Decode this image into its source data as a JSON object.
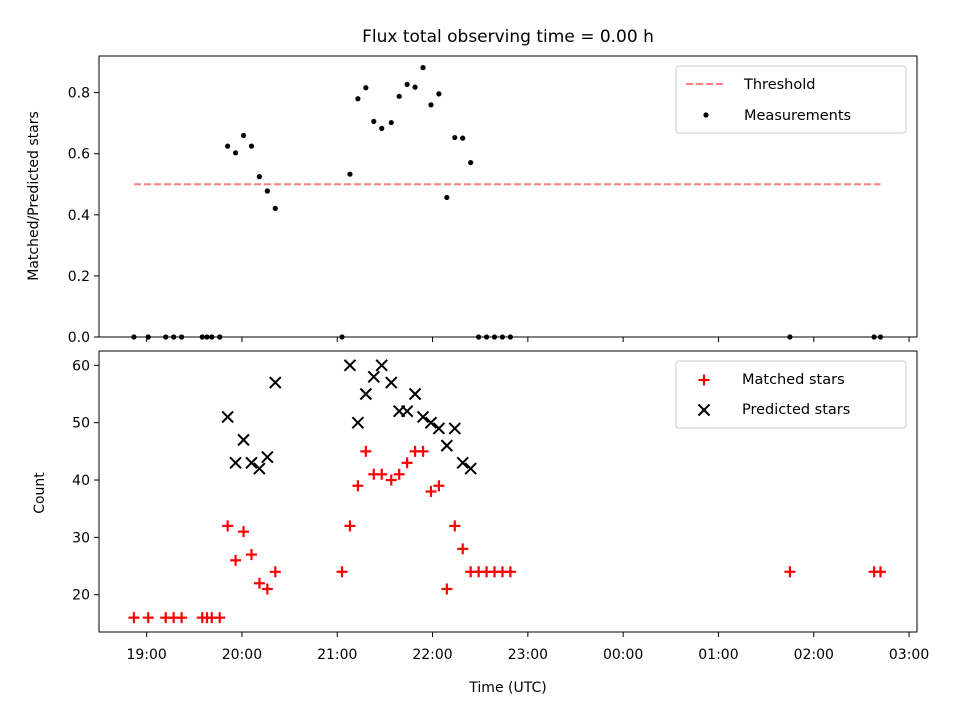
{
  "chart_data": [
    {
      "type": "scatter",
      "title": "Flux total observing time = 0.00 h",
      "xlabel": "",
      "ylabel": "Matched/Predicted stars",
      "xlim": [
        "18:30",
        "03:05"
      ],
      "ylim": [
        0,
        0.92
      ],
      "yticks": [
        "0.0",
        "0.2",
        "0.4",
        "0.6",
        "0.8"
      ],
      "grid": false,
      "legend_position": "upper right",
      "threshold": {
        "name": "Threshold",
        "value": 0.5,
        "x_start": "18:52",
        "x_end": "02:42",
        "color": "#ff7f7f",
        "style": "dashed"
      },
      "series": [
        {
          "name": "Measurements",
          "color": "#000000",
          "marker": "dot",
          "points": [
            {
              "x": "18:52",
              "y": 0.0
            },
            {
              "x": "19:01",
              "y": 0.0
            },
            {
              "x": "19:12",
              "y": 0.0
            },
            {
              "x": "19:17",
              "y": 0.0
            },
            {
              "x": "19:22",
              "y": 0.0
            },
            {
              "x": "19:35",
              "y": 0.0
            },
            {
              "x": "19:38",
              "y": 0.0
            },
            {
              "x": "19:41",
              "y": 0.0
            },
            {
              "x": "19:46",
              "y": 0.0
            },
            {
              "x": "19:51",
              "y": 0.625
            },
            {
              "x": "19:56",
              "y": 0.603
            },
            {
              "x": "20:01",
              "y": 0.66
            },
            {
              "x": "20:06",
              "y": 0.625
            },
            {
              "x": "20:11",
              "y": 0.525
            },
            {
              "x": "20:16",
              "y": 0.478
            },
            {
              "x": "20:21",
              "y": 0.421
            },
            {
              "x": "21:03",
              "y": 0.0
            },
            {
              "x": "21:08",
              "y": 0.533
            },
            {
              "x": "21:13",
              "y": 0.78
            },
            {
              "x": "21:18",
              "y": 0.816
            },
            {
              "x": "21:23",
              "y": 0.706
            },
            {
              "x": "21:28",
              "y": 0.683
            },
            {
              "x": "21:34",
              "y": 0.702
            },
            {
              "x": "21:39",
              "y": 0.788
            },
            {
              "x": "21:44",
              "y": 0.827
            },
            {
              "x": "21:49",
              "y": 0.818
            },
            {
              "x": "21:54",
              "y": 0.882
            },
            {
              "x": "21:59",
              "y": 0.76
            },
            {
              "x": "22:04",
              "y": 0.796
            },
            {
              "x": "22:09",
              "y": 0.457
            },
            {
              "x": "22:14",
              "y": 0.653
            },
            {
              "x": "22:19",
              "y": 0.651
            },
            {
              "x": "22:24",
              "y": 0.571
            },
            {
              "x": "22:29",
              "y": 0.0
            },
            {
              "x": "22:34",
              "y": 0.0
            },
            {
              "x": "22:39",
              "y": 0.0
            },
            {
              "x": "22:44",
              "y": 0.0
            },
            {
              "x": "22:49",
              "y": 0.0
            },
            {
              "x": "01:45",
              "y": 0.0
            },
            {
              "x": "02:38",
              "y": 0.0
            },
            {
              "x": "02:42",
              "y": 0.0
            }
          ]
        }
      ]
    },
    {
      "type": "scatter",
      "title": "",
      "xlabel": "Time (UTC)",
      "ylabel": "Count",
      "xlim": [
        "18:30",
        "03:05"
      ],
      "ylim": [
        13.5,
        62.5
      ],
      "xticks": [
        "19:00",
        "20:00",
        "21:00",
        "22:00",
        "23:00",
        "00:00",
        "01:00",
        "02:00",
        "03:00"
      ],
      "yticks": [
        "20",
        "30",
        "40",
        "50",
        "60"
      ],
      "grid": false,
      "legend_position": "upper right",
      "series": [
        {
          "name": "Matched stars",
          "color": "#ff0000",
          "marker": "plus",
          "points": [
            {
              "x": "18:52",
              "y": 16
            },
            {
              "x": "19:01",
              "y": 16
            },
            {
              "x": "19:12",
              "y": 16
            },
            {
              "x": "19:17",
              "y": 16
            },
            {
              "x": "19:22",
              "y": 16
            },
            {
              "x": "19:35",
              "y": 16
            },
            {
              "x": "19:38",
              "y": 16
            },
            {
              "x": "19:41",
              "y": 16
            },
            {
              "x": "19:46",
              "y": 16
            },
            {
              "x": "19:51",
              "y": 32
            },
            {
              "x": "19:56",
              "y": 26
            },
            {
              "x": "20:01",
              "y": 31
            },
            {
              "x": "20:06",
              "y": 27
            },
            {
              "x": "20:11",
              "y": 22
            },
            {
              "x": "20:16",
              "y": 21
            },
            {
              "x": "20:21",
              "y": 24
            },
            {
              "x": "21:03",
              "y": 24
            },
            {
              "x": "21:08",
              "y": 32
            },
            {
              "x": "21:13",
              "y": 39
            },
            {
              "x": "21:18",
              "y": 45
            },
            {
              "x": "21:23",
              "y": 41
            },
            {
              "x": "21:28",
              "y": 41
            },
            {
              "x": "21:34",
              "y": 40
            },
            {
              "x": "21:39",
              "y": 41
            },
            {
              "x": "21:44",
              "y": 43
            },
            {
              "x": "21:49",
              "y": 45
            },
            {
              "x": "21:54",
              "y": 45
            },
            {
              "x": "21:59",
              "y": 38
            },
            {
              "x": "22:04",
              "y": 39
            },
            {
              "x": "22:09",
              "y": 21
            },
            {
              "x": "22:14",
              "y": 32
            },
            {
              "x": "22:19",
              "y": 28
            },
            {
              "x": "22:24",
              "y": 24
            },
            {
              "x": "22:29",
              "y": 24
            },
            {
              "x": "22:34",
              "y": 24
            },
            {
              "x": "22:39",
              "y": 24
            },
            {
              "x": "22:44",
              "y": 24
            },
            {
              "x": "22:49",
              "y": 24
            },
            {
              "x": "01:45",
              "y": 24
            },
            {
              "x": "02:38",
              "y": 24
            },
            {
              "x": "02:42",
              "y": 24
            }
          ]
        },
        {
          "name": "Predicted stars",
          "color": "#000000",
          "marker": "x",
          "points": [
            {
              "x": "19:51",
              "y": 51
            },
            {
              "x": "19:56",
              "y": 43
            },
            {
              "x": "20:01",
              "y": 47
            },
            {
              "x": "20:06",
              "y": 43
            },
            {
              "x": "20:11",
              "y": 42
            },
            {
              "x": "20:16",
              "y": 44
            },
            {
              "x": "20:21",
              "y": 57
            },
            {
              "x": "21:08",
              "y": 60
            },
            {
              "x": "21:13",
              "y": 50
            },
            {
              "x": "21:18",
              "y": 55
            },
            {
              "x": "21:23",
              "y": 58
            },
            {
              "x": "21:28",
              "y": 60
            },
            {
              "x": "21:34",
              "y": 57
            },
            {
              "x": "21:39",
              "y": 52
            },
            {
              "x": "21:44",
              "y": 52
            },
            {
              "x": "21:49",
              "y": 55
            },
            {
              "x": "21:54",
              "y": 51
            },
            {
              "x": "21:59",
              "y": 50
            },
            {
              "x": "22:04",
              "y": 49
            },
            {
              "x": "22:09",
              "y": 46
            },
            {
              "x": "22:14",
              "y": 49
            },
            {
              "x": "22:19",
              "y": 43
            },
            {
              "x": "22:24",
              "y": 42
            }
          ]
        }
      ]
    }
  ]
}
